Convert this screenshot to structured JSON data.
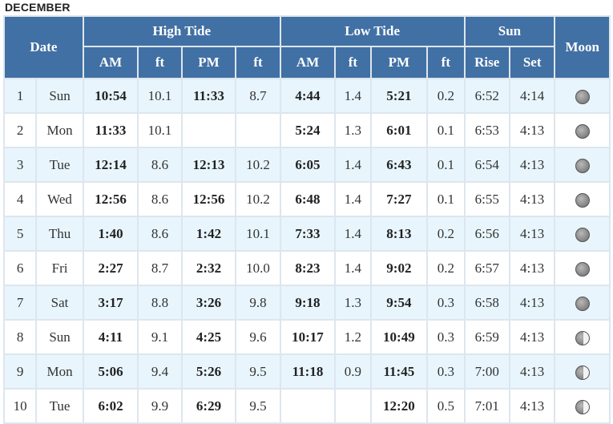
{
  "month": "DECEMBER",
  "headers": {
    "date": "Date",
    "high_tide": "High Tide",
    "low_tide": "Low Tide",
    "sun": "Sun",
    "moon": "Moon",
    "am": "AM",
    "ft": "ft",
    "pm": "PM",
    "rise": "Rise",
    "set": "Set"
  },
  "rows": [
    {
      "day": "1",
      "dow": "Sun",
      "h_am": "10:54",
      "h_am_ft": "10.1",
      "h_pm": "11:33",
      "h_pm_ft": "8.7",
      "l_am": "4:44",
      "l_am_ft": "1.4",
      "l_pm": "5:21",
      "l_pm_ft": "0.2",
      "rise": "6:52",
      "set": "4:14",
      "moon": "waning-gibbous-icon"
    },
    {
      "day": "2",
      "dow": "Mon",
      "h_am": "11:33",
      "h_am_ft": "10.1",
      "h_pm": "",
      "h_pm_ft": "",
      "l_am": "5:24",
      "l_am_ft": "1.3",
      "l_pm": "6:01",
      "l_pm_ft": "0.1",
      "rise": "6:53",
      "set": "4:13",
      "moon": "waning-gibbous-icon"
    },
    {
      "day": "3",
      "dow": "Tue",
      "h_am": "12:14",
      "h_am_ft": "8.6",
      "h_pm": "12:13",
      "h_pm_ft": "10.2",
      "l_am": "6:05",
      "l_am_ft": "1.4",
      "l_pm": "6:43",
      "l_pm_ft": "0.1",
      "rise": "6:54",
      "set": "4:13",
      "moon": "waning-gibbous-icon"
    },
    {
      "day": "4",
      "dow": "Wed",
      "h_am": "12:56",
      "h_am_ft": "8.6",
      "h_pm": "12:56",
      "h_pm_ft": "10.2",
      "l_am": "6:48",
      "l_am_ft": "1.4",
      "l_pm": "7:27",
      "l_pm_ft": "0.1",
      "rise": "6:55",
      "set": "4:13",
      "moon": "waning-gibbous-icon"
    },
    {
      "day": "5",
      "dow": "Thu",
      "h_am": "1:40",
      "h_am_ft": "8.6",
      "h_pm": "1:42",
      "h_pm_ft": "10.1",
      "l_am": "7:33",
      "l_am_ft": "1.4",
      "l_pm": "8:13",
      "l_pm_ft": "0.2",
      "rise": "6:56",
      "set": "4:13",
      "moon": "waning-gibbous-icon"
    },
    {
      "day": "6",
      "dow": "Fri",
      "h_am": "2:27",
      "h_am_ft": "8.7",
      "h_pm": "2:32",
      "h_pm_ft": "10.0",
      "l_am": "8:23",
      "l_am_ft": "1.4",
      "l_pm": "9:02",
      "l_pm_ft": "0.2",
      "rise": "6:57",
      "set": "4:13",
      "moon": "waning-gibbous-icon"
    },
    {
      "day": "7",
      "dow": "Sat",
      "h_am": "3:17",
      "h_am_ft": "8.8",
      "h_pm": "3:26",
      "h_pm_ft": "9.8",
      "l_am": "9:18",
      "l_am_ft": "1.3",
      "l_pm": "9:54",
      "l_pm_ft": "0.3",
      "rise": "6:58",
      "set": "4:13",
      "moon": "waning-gibbous-icon"
    },
    {
      "day": "8",
      "dow": "Sun",
      "h_am": "4:11",
      "h_am_ft": "9.1",
      "h_pm": "4:25",
      "h_pm_ft": "9.6",
      "l_am": "10:17",
      "l_am_ft": "1.2",
      "l_pm": "10:49",
      "l_pm_ft": "0.3",
      "rise": "6:59",
      "set": "4:13",
      "moon": "third-quarter-icon"
    },
    {
      "day": "9",
      "dow": "Mon",
      "h_am": "5:06",
      "h_am_ft": "9.4",
      "h_pm": "5:26",
      "h_pm_ft": "9.5",
      "l_am": "11:18",
      "l_am_ft": "0.9",
      "l_pm": "11:45",
      "l_pm_ft": "0.3",
      "rise": "7:00",
      "set": "4:13",
      "moon": "third-quarter-icon"
    },
    {
      "day": "10",
      "dow": "Tue",
      "h_am": "6:02",
      "h_am_ft": "9.9",
      "h_pm": "6:29",
      "h_pm_ft": "9.5",
      "l_am": "",
      "l_am_ft": "",
      "l_pm": "12:20",
      "l_pm_ft": "0.5",
      "rise": "7:01",
      "set": "4:13",
      "moon": "third-quarter-icon"
    }
  ]
}
